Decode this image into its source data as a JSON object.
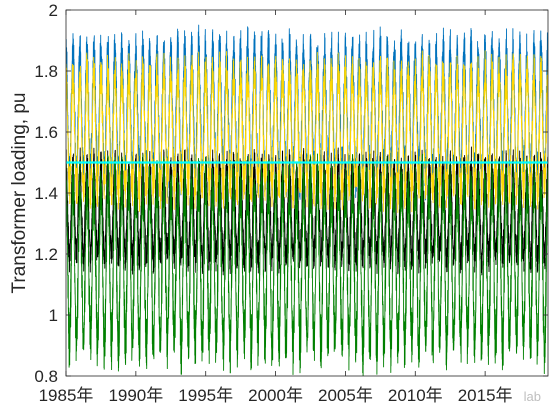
{
  "chart_data": {
    "type": "line",
    "title": "",
    "xlabel": "",
    "ylabel": "Transformer loading, pu",
    "xlim": [
      1985,
      2019.5
    ],
    "ylim": [
      0.8,
      2.0
    ],
    "x_ticks": [
      1985,
      1990,
      1995,
      2000,
      2005,
      2010,
      2015
    ],
    "x_tick_labels": [
      "1985年",
      "1990年",
      "1995年",
      "2000年",
      "2005年",
      "2010年",
      "2015年"
    ],
    "y_ticks": [
      0.8,
      1.0,
      1.2,
      1.4,
      1.6,
      1.8,
      2.0
    ],
    "y_tick_labels": [
      "0.8",
      "1",
      "1.2",
      "1.4",
      "1.6",
      "1.8",
      "2"
    ],
    "grid": false,
    "legend": "none",
    "cycles_per_year": 2,
    "series": [
      {
        "color": "#0072BD",
        "peak": 1.88,
        "trough": 1.44
      },
      {
        "color": "#FFD700",
        "peak": 1.8,
        "trough": 1.4
      },
      {
        "color": "#000000",
        "peak": 1.5,
        "trough": 1.18
      },
      {
        "color": "#008000",
        "peak": 1.44,
        "trough": 0.89
      }
    ],
    "threshold": {
      "color": "#00FFFF",
      "value": 1.5
    }
  },
  "watermark": "lab"
}
